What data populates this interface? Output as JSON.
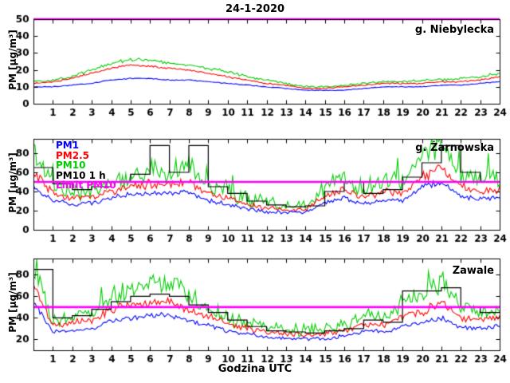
{
  "title": "24-1-2020",
  "xlabel": "Godzina UTC",
  "ylabel": "PM [µg/m³]",
  "legend": [
    {
      "label": "PM1",
      "color": "#0000ff"
    },
    {
      "label": "PM2.5",
      "color": "#ff0000"
    },
    {
      "label": "PM10",
      "color": "#00cc00"
    },
    {
      "label": "PM10 1 h",
      "color": "#000000"
    },
    {
      "label": "Limit PM10",
      "color": "#ff00ff"
    }
  ],
  "limit": {
    "value": 50,
    "color": "#ff00ff"
  },
  "chart_data": [
    {
      "type": "line",
      "station": "g. Niebylecka",
      "x_range": [
        0,
        24
      ],
      "xticks": [
        1,
        2,
        3,
        4,
        5,
        6,
        7,
        8,
        9,
        10,
        11,
        12,
        13,
        14,
        15,
        16,
        17,
        18,
        19,
        20,
        21,
        22,
        23,
        24
      ],
      "ylim": [
        0,
        50
      ],
      "yticks": [
        0,
        10,
        20,
        30,
        40,
        50
      ],
      "limit_value": 50,
      "series": [
        {
          "name": "PM10",
          "color": "#00cc00",
          "noise": 1.3,
          "values": [
            13,
            14,
            16,
            20,
            24,
            26,
            26,
            24,
            23,
            21,
            19,
            16,
            14,
            12,
            10,
            10,
            11,
            12,
            13,
            13,
            14,
            14,
            15,
            16,
            18
          ]
        },
        {
          "name": "PM2.5",
          "color": "#ff0000",
          "noise": 0.8,
          "values": [
            12,
            13,
            15,
            18,
            21,
            23,
            22,
            21,
            20,
            18,
            16,
            14,
            12,
            11,
            9,
            9,
            10,
            11,
            12,
            12,
            12,
            13,
            13,
            14,
            16
          ]
        },
        {
          "name": "PM1",
          "color": "#0000ff",
          "noise": 0.5,
          "values": [
            10,
            10,
            11,
            12,
            14,
            15,
            15,
            14,
            14,
            13,
            12,
            11,
            10,
            9,
            8,
            8,
            8,
            9,
            10,
            10,
            10,
            11,
            11,
            12,
            13
          ]
        }
      ]
    },
    {
      "type": "line",
      "station": "g. Żarnowska",
      "x_range": [
        0,
        24
      ],
      "xticks": [
        1,
        2,
        3,
        4,
        5,
        6,
        7,
        8,
        9,
        10,
        11,
        12,
        13,
        14,
        15,
        16,
        17,
        18,
        19,
        20,
        21,
        22,
        23,
        24
      ],
      "ylim": [
        0,
        95
      ],
      "yticks": [
        0,
        20,
        40,
        60,
        80
      ],
      "limit_value": 50,
      "series": [
        {
          "name": "PM10",
          "color": "#00cc00",
          "noise": 9,
          "spiky": true,
          "values": [
            80,
            45,
            40,
            42,
            48,
            55,
            65,
            60,
            70,
            45,
            40,
            32,
            28,
            25,
            25,
            45,
            55,
            40,
            55,
            50,
            75,
            85,
            55,
            50,
            55
          ]
        },
        {
          "name": "PM2.5",
          "color": "#ff0000",
          "noise": 4,
          "values": [
            60,
            38,
            33,
            35,
            40,
            45,
            48,
            47,
            50,
            38,
            33,
            27,
            23,
            21,
            21,
            35,
            42,
            33,
            40,
            38,
            55,
            65,
            45,
            40,
            42
          ]
        },
        {
          "name": "PM1",
          "color": "#0000ff",
          "noise": 3,
          "values": [
            45,
            30,
            27,
            28,
            33,
            37,
            38,
            38,
            40,
            30,
            27,
            22,
            19,
            18,
            18,
            28,
            33,
            27,
            32,
            30,
            45,
            50,
            35,
            32,
            34
          ]
        },
        {
          "name": "PM10 1h",
          "color": "#000000",
          "step": true,
          "values": [
            65,
            48,
            42,
            45,
            50,
            58,
            88,
            60,
            88,
            45,
            38,
            30,
            26,
            24,
            25,
            40,
            50,
            38,
            42,
            55,
            70,
            88,
            60,
            50,
            50
          ]
        }
      ]
    },
    {
      "type": "line",
      "station": "Zawale",
      "x_range": [
        0,
        24
      ],
      "xticks": [
        1,
        2,
        3,
        4,
        5,
        6,
        7,
        8,
        9,
        10,
        11,
        12,
        13,
        14,
        15,
        16,
        17,
        18,
        19,
        20,
        21,
        22,
        23,
        24
      ],
      "ylim": [
        10,
        95
      ],
      "yticks": [
        20,
        40,
        60,
        80
      ],
      "limit_value": 50,
      "series": [
        {
          "name": "PM10",
          "color": "#00cc00",
          "noise": 7,
          "spiky": true,
          "values": [
            90,
            38,
            40,
            45,
            60,
            65,
            70,
            72,
            60,
            50,
            40,
            35,
            32,
            30,
            28,
            30,
            32,
            42,
            40,
            55,
            60,
            75,
            50,
            45,
            48
          ]
        },
        {
          "name": "PM2.5",
          "color": "#ff0000",
          "noise": 3.5,
          "values": [
            70,
            33,
            35,
            38,
            48,
            52,
            55,
            55,
            48,
            42,
            34,
            30,
            27,
            26,
            24,
            26,
            28,
            35,
            33,
            42,
            45,
            55,
            40,
            38,
            40
          ]
        },
        {
          "name": "PM1",
          "color": "#0000ff",
          "noise": 2.5,
          "values": [
            55,
            28,
            28,
            30,
            38,
            40,
            42,
            42,
            38,
            33,
            28,
            25,
            22,
            21,
            20,
            21,
            23,
            28,
            27,
            32,
            35,
            40,
            32,
            30,
            32
          ]
        },
        {
          "name": "PM10 1h",
          "color": "#000000",
          "step": true,
          "values": [
            85,
            40,
            42,
            48,
            55,
            60,
            62,
            60,
            52,
            45,
            38,
            32,
            28,
            27,
            26,
            28,
            30,
            38,
            36,
            65,
            65,
            68,
            50,
            45,
            45
          ]
        }
      ]
    }
  ]
}
